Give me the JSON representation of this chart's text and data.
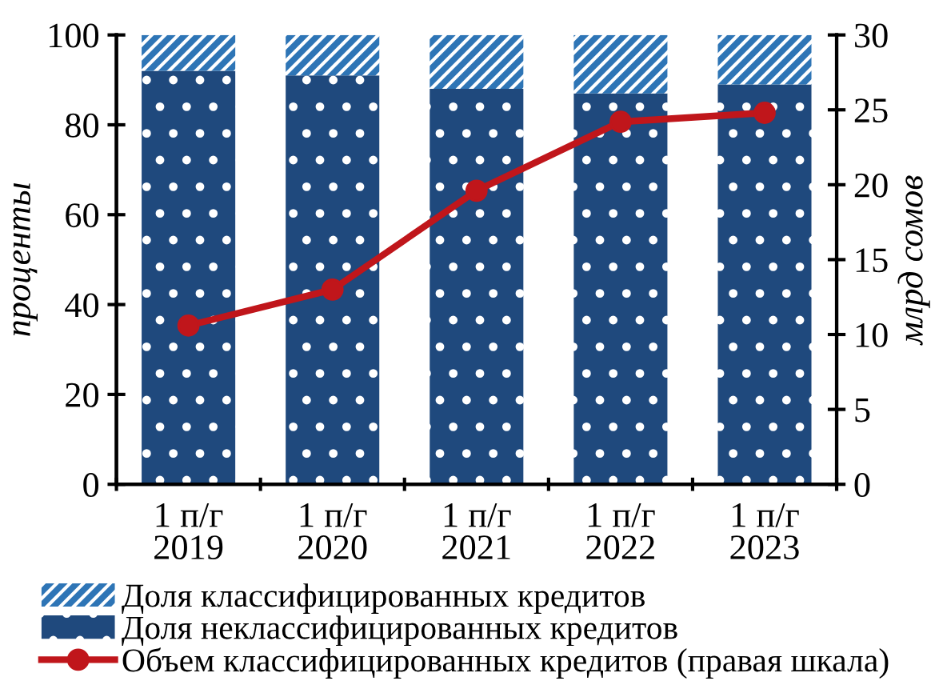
{
  "chart_data": {
    "type": "bar",
    "stacked": true,
    "categories": [
      "1 п/г\n2019",
      "1 п/г\n2020",
      "1 п/г\n2021",
      "1 п/г\n2022",
      "1 п/г\n2023"
    ],
    "ylabel": "проценты",
    "y2label": "млрд сомов",
    "ylim": [
      0,
      100
    ],
    "yticks": [
      0,
      20,
      40,
      60,
      80,
      100
    ],
    "y2lim": [
      0,
      30
    ],
    "y2ticks": [
      0,
      5,
      10,
      15,
      20,
      25,
      30
    ],
    "legend": "bottom",
    "grid": false,
    "series": [
      {
        "name": "Доля неклассифицированных кредитов",
        "color": "#1f497d",
        "values": [
          92,
          91,
          88,
          87,
          89
        ]
      },
      {
        "name": "Доля классифицированных кредитов",
        "color": "#2e75b6",
        "values": [
          8,
          9,
          12,
          13,
          11
        ]
      },
      {
        "name": "Объем классифицированных кредитов (правая шкала)",
        "type": "line",
        "axis": "y2",
        "color": "#c0161b",
        "marker": "circle",
        "values": [
          10.6,
          13.0,
          19.6,
          24.2,
          24.8
        ]
      }
    ]
  }
}
